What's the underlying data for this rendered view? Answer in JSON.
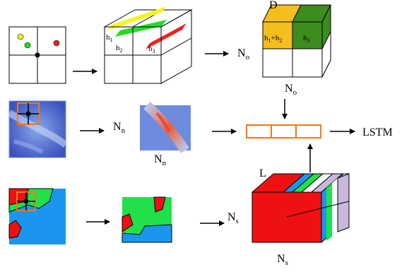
{
  "labels": {
    "d": "D",
    "no_main": "N",
    "no_sub": "o",
    "nn_main": "N",
    "nn_sub": "n",
    "ns_main": "N",
    "ns_sub": "s",
    "l": "L",
    "lstm": "LSTM",
    "h_main": "h",
    "h1_sub": "1",
    "h2_sub": "2",
    "h3_sub": "3",
    "plus": "+"
  },
  "colors": {
    "yellow": "#f5f51f",
    "green": "#22dd22",
    "red": "#ee2222",
    "gold": "#f4be1e",
    "dark_green": "#3c8c1e",
    "orange": "#f07818",
    "sem_red": "#ee1111",
    "sem_blue": "#1a96f0",
    "sem_green": "#22e04a",
    "lavender": "#c8b8e0"
  }
}
